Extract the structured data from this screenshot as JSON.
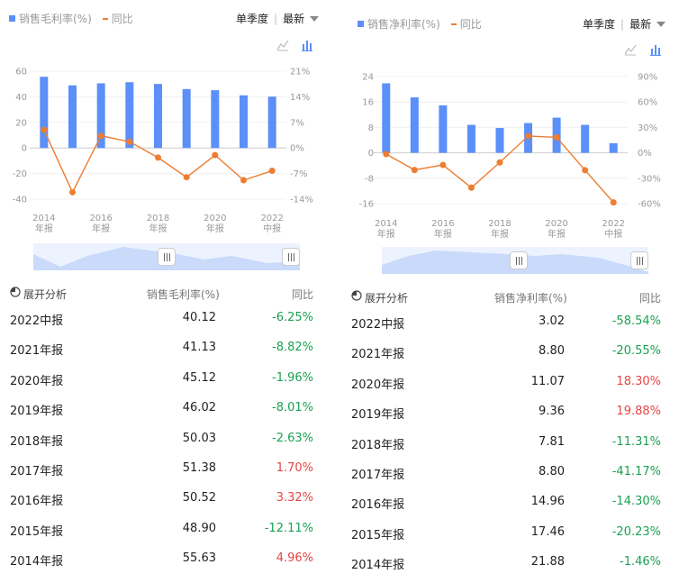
{
  "colors": {
    "bar": "#5b8ff9",
    "line": "#ed7d31",
    "negative": "#1aa152",
    "positive": "#e64545"
  },
  "icons": {
    "line_toggle": "line-chart-icon",
    "bar_toggle": "bar-chart-icon",
    "analysis": "pie-chart-icon"
  },
  "period": {
    "label": "单季度",
    "selected": "最新"
  },
  "panels": [
    {
      "legend": {
        "bar": "销售毛利率(%)",
        "line": "同比"
      },
      "table": {
        "header": {
          "analysis": "展开分析",
          "metric": "销售毛利率(%)",
          "yoy": "同比"
        },
        "rows": [
          {
            "period": "2022中报",
            "value": "40.12",
            "yoy": "-6.25%",
            "dir": "neg"
          },
          {
            "period": "2021年报",
            "value": "41.13",
            "yoy": "-8.82%",
            "dir": "neg"
          },
          {
            "period": "2020年报",
            "value": "45.12",
            "yoy": "-1.96%",
            "dir": "neg"
          },
          {
            "period": "2019年报",
            "value": "46.02",
            "yoy": "-8.01%",
            "dir": "neg"
          },
          {
            "period": "2018年报",
            "value": "50.03",
            "yoy": "-2.63%",
            "dir": "neg"
          },
          {
            "period": "2017年报",
            "value": "51.38",
            "yoy": "1.70%",
            "dir": "pos"
          },
          {
            "period": "2016年报",
            "value": "50.52",
            "yoy": "3.32%",
            "dir": "pos"
          },
          {
            "period": "2015年报",
            "value": "48.90",
            "yoy": "-12.11%",
            "dir": "neg"
          },
          {
            "period": "2014年报",
            "value": "55.63",
            "yoy": "4.96%",
            "dir": "pos"
          }
        ]
      }
    },
    {
      "legend": {
        "bar": "销售净利率(%)",
        "line": "同比"
      },
      "table": {
        "header": {
          "analysis": "展开分析",
          "metric": "销售净利率(%)",
          "yoy": "同比"
        },
        "rows": [
          {
            "period": "2022中报",
            "value": "3.02",
            "yoy": "-58.54%",
            "dir": "neg"
          },
          {
            "period": "2021年报",
            "value": "8.80",
            "yoy": "-20.55%",
            "dir": "neg"
          },
          {
            "period": "2020年报",
            "value": "11.07",
            "yoy": "18.30%",
            "dir": "pos"
          },
          {
            "period": "2019年报",
            "value": "9.36",
            "yoy": "19.88%",
            "dir": "pos"
          },
          {
            "period": "2018年报",
            "value": "7.81",
            "yoy": "-11.31%",
            "dir": "neg"
          },
          {
            "period": "2017年报",
            "value": "8.80",
            "yoy": "-41.17%",
            "dir": "neg"
          },
          {
            "period": "2016年报",
            "value": "14.96",
            "yoy": "-14.30%",
            "dir": "neg"
          },
          {
            "period": "2015年报",
            "value": "17.46",
            "yoy": "-20.23%",
            "dir": "neg"
          },
          {
            "period": "2014年报",
            "value": "21.88",
            "yoy": "-1.46%",
            "dir": "neg"
          }
        ]
      }
    }
  ],
  "chart_data": [
    {
      "type": "bar",
      "categories": [
        "2014年报",
        "2015年报",
        "2016年报",
        "2017年报",
        "2018年报",
        "2019年报",
        "2020年报",
        "2021年报",
        "2022中报"
      ],
      "x_tick_labels": [
        [
          "2014",
          "年报"
        ],
        [
          "2016",
          "年报"
        ],
        [
          "2018",
          "年报"
        ],
        [
          "2020",
          "年报"
        ],
        [
          "2022",
          "中报"
        ]
      ],
      "series": [
        {
          "name": "销售毛利率(%)",
          "type": "bar",
          "axis": "left",
          "values": [
            55.63,
            48.9,
            50.52,
            51.38,
            50.03,
            46.02,
            45.12,
            41.13,
            40.12
          ]
        },
        {
          "name": "同比",
          "type": "line",
          "axis": "right",
          "values": [
            4.96,
            -12.11,
            3.32,
            1.7,
            -2.63,
            -8.01,
            -1.96,
            -8.82,
            -6.25
          ]
        }
      ],
      "y_left": {
        "ticks": [
          "60",
          "40",
          "20",
          "0",
          "-20",
          "-40"
        ],
        "range": [
          -40,
          60
        ]
      },
      "y_right": {
        "ticks": [
          "21%",
          "14%",
          "7%",
          "0%",
          "-7%",
          "-14%"
        ],
        "range": [
          -14,
          21
        ]
      }
    },
    {
      "type": "bar",
      "categories": [
        "2014年报",
        "2015年报",
        "2016年报",
        "2017年报",
        "2018年报",
        "2019年报",
        "2020年报",
        "2021年报",
        "2022中报"
      ],
      "x_tick_labels": [
        [
          "2014",
          "年报"
        ],
        [
          "2016",
          "年报"
        ],
        [
          "2018",
          "年报"
        ],
        [
          "2020",
          "年报"
        ],
        [
          "2022",
          "中报"
        ]
      ],
      "series": [
        {
          "name": "销售净利率(%)",
          "type": "bar",
          "axis": "left",
          "values": [
            21.88,
            17.46,
            14.96,
            8.8,
            7.81,
            9.36,
            11.07,
            8.8,
            3.02
          ]
        },
        {
          "name": "同比",
          "type": "line",
          "axis": "right",
          "values": [
            -1.46,
            -20.23,
            -14.3,
            -41.17,
            -11.31,
            19.88,
            18.3,
            -20.55,
            -58.54
          ]
        }
      ],
      "y_left": {
        "ticks": [
          "24",
          "16",
          "8",
          "0",
          "-8",
          "-16"
        ],
        "range": [
          -16,
          24
        ]
      },
      "y_right": {
        "ticks": [
          "90%",
          "60%",
          "30%",
          "0%",
          "-30%",
          "-60%"
        ],
        "range": [
          -60,
          90
        ]
      }
    }
  ]
}
